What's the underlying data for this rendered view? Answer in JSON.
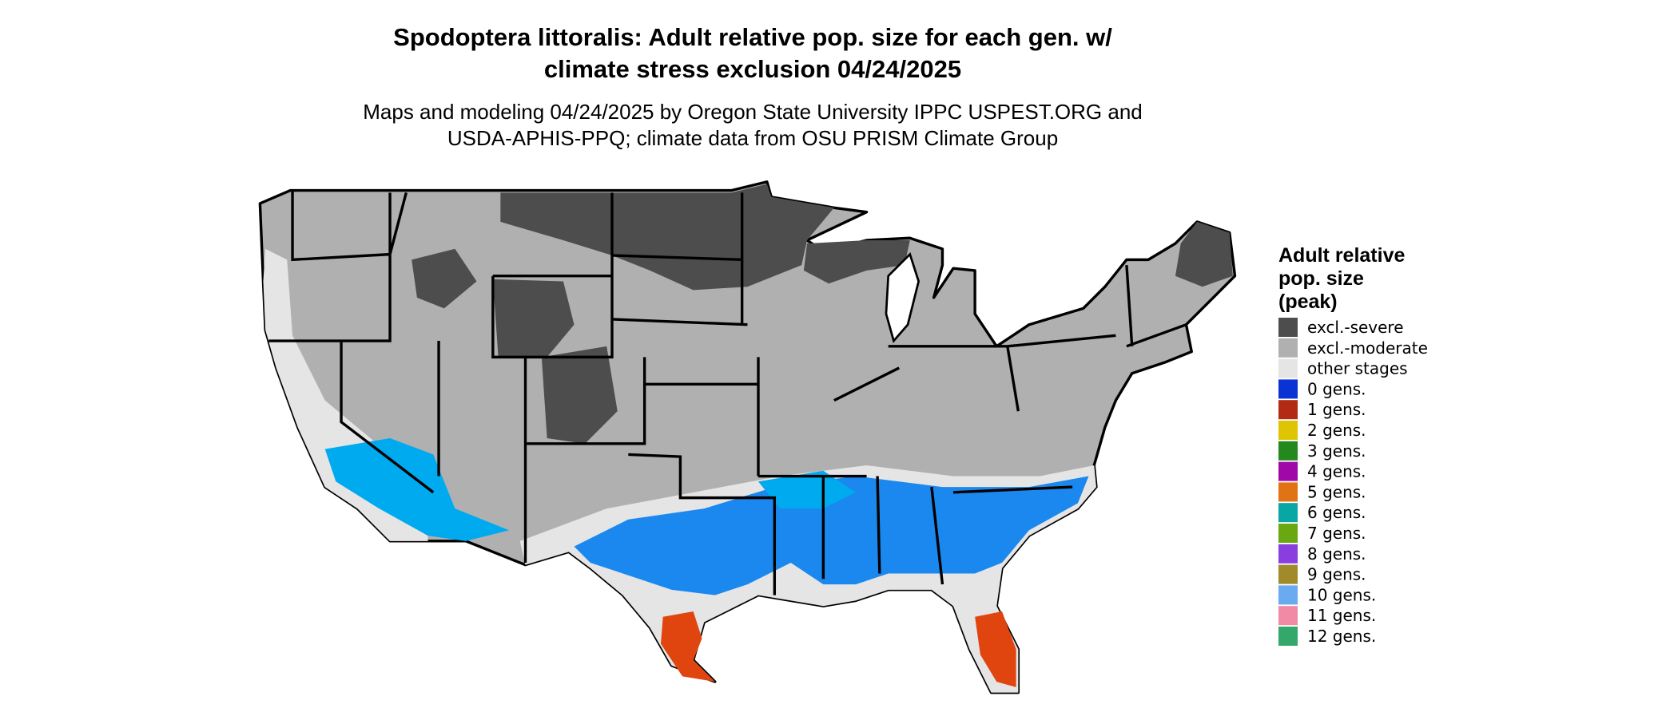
{
  "header": {
    "title": [
      "Spodoptera littoralis: Adult relative pop. size for each gen. w/",
      "climate stress exclusion 04/24/2025"
    ],
    "subtitle": [
      "Maps and modeling 04/24/2025 by Oregon State University IPPC USPEST.ORG and",
      "USDA-APHIS-PPQ; climate data from OSU PRISM Climate Group"
    ]
  },
  "legend": {
    "title": [
      "Adult relative",
      "pop. size",
      "(peak)"
    ],
    "items": [
      {
        "label": "excl.-severe",
        "color": "#4d4d4d"
      },
      {
        "label": "excl.-moderate",
        "color": "#b0b0b0"
      },
      {
        "label": "other stages",
        "color": "#e5e5e5"
      },
      {
        "label": "0 gens.",
        "color": "#0a33d6"
      },
      {
        "label": "1 gens.",
        "color": "#b22a13"
      },
      {
        "label": "2 gens.",
        "color": "#dfc404"
      },
      {
        "label": "3 gens.",
        "color": "#23891d"
      },
      {
        "label": "4 gens.",
        "color": "#a008a8"
      },
      {
        "label": "5 gens.",
        "color": "#e07313"
      },
      {
        "label": "6 gens.",
        "color": "#0aa5a5"
      },
      {
        "label": "7 gens.",
        "color": "#6aa813"
      },
      {
        "label": "8 gens.",
        "color": "#8a3ee0"
      },
      {
        "label": "9 gens.",
        "color": "#a08a2a"
      },
      {
        "label": "10 gens.",
        "color": "#6aaaf0"
      },
      {
        "label": "11 gens.",
        "color": "#f08aa5"
      },
      {
        "label": "12 gens.",
        "color": "#33a86a"
      }
    ]
  }
}
